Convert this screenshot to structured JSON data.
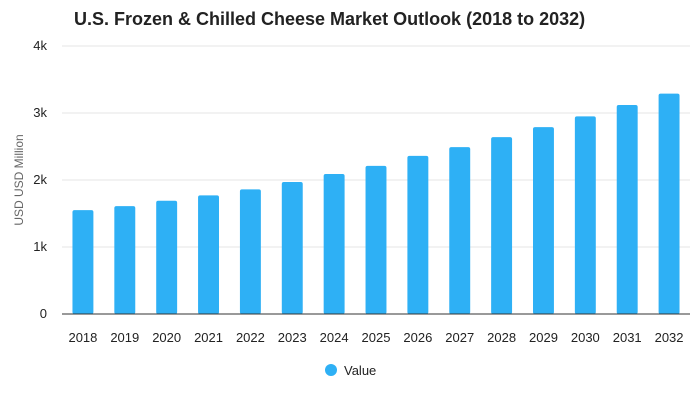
{
  "chart_data": {
    "type": "bar",
    "title": "U.S. Frozen & Chilled Cheese Market Outlook (2018 to 2032)",
    "xlabel": "",
    "ylabel": "USD USD Million",
    "categories": [
      "2018",
      "2019",
      "2020",
      "2021",
      "2022",
      "2023",
      "2024",
      "2025",
      "2026",
      "2027",
      "2028",
      "2029",
      "2030",
      "2031",
      "2032"
    ],
    "series": [
      {
        "name": "Value",
        "values": [
          1550,
          1610,
          1690,
          1770,
          1860,
          1970,
          2090,
          2210,
          2360,
          2490,
          2640,
          2790,
          2950,
          3120,
          3290
        ]
      }
    ],
    "ylim": [
      0,
      4000
    ],
    "yticks": [
      {
        "value": 0,
        "label": "0"
      },
      {
        "value": 1000,
        "label": "1k"
      },
      {
        "value": 2000,
        "label": "2k"
      },
      {
        "value": 3000,
        "label": "3k"
      },
      {
        "value": 4000,
        "label": "4k"
      }
    ],
    "grid": true,
    "legend_position": "bottom",
    "colors": {
      "bar": "#2eb0f5",
      "grid": "#e6e6e6",
      "axis": "#333333"
    }
  }
}
